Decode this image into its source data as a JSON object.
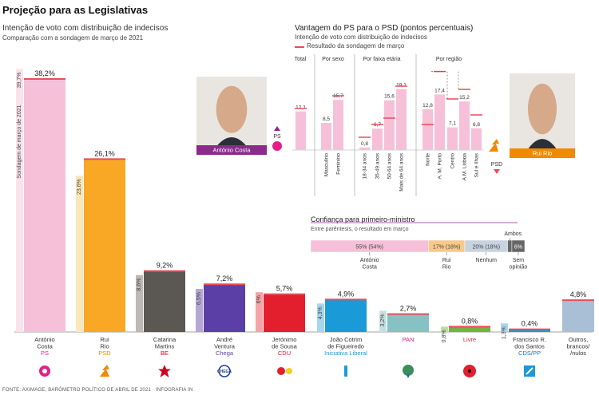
{
  "header": {
    "title": "Projeção para as Legislativas",
    "subtitle": "Intenção de voto com distribuição de indecisos",
    "comparison": "Comparação com a sondagem de março de 2021",
    "source": "FONTE: AXIMAGE, BARÓMETRO POLÍTICO DE ABRIL DE 2021 · INFOGRAFIA IN"
  },
  "chart_data": [
    {
      "type": "bar",
      "title": "Projeção para as Legislativas",
      "rotated_label": "Sondagem de março de 2021",
      "categories": [
        {
          "name": "António Costa",
          "party": "PS",
          "color": "#f6c0d8",
          "party_color": "#e2208a",
          "icon": "ps-fist-rose-icon"
        },
        {
          "name": "Rui Rio",
          "party": "PSD",
          "color": "#f9a825",
          "party_color": "#f08a00",
          "icon": "psd-arrow-icon"
        },
        {
          "name": "Catarina Martins",
          "party": "BE",
          "color": "#5b5753",
          "party_color": "#d2001e",
          "icon": "be-star-icon"
        },
        {
          "name": "André Ventura",
          "party": "Chega",
          "color": "#5c3fa6",
          "party_color": "#5c3fa6",
          "icon": "chega-icon"
        },
        {
          "name": "Jerónimo de Sousa",
          "party": "CDU",
          "color": "#e31e2d",
          "party_color": "#e31e2d",
          "icon": "cdu-hammer-sickle-icon"
        },
        {
          "name": "João Cotrim de Figueiredo",
          "party": "Iniciativa Liberal",
          "color": "#1a9bd7",
          "party_color": "#1a9bd7",
          "icon": "il-icon"
        },
        {
          "name": "",
          "party": "PAN",
          "color": "#86c2c4",
          "party_color": "#e2208a",
          "icon": "pan-tree-icon"
        },
        {
          "name": "",
          "party": "Livre",
          "color": "#73b43c",
          "party_color": "#e31e2d",
          "icon": "livre-poppy-icon"
        },
        {
          "name": "Francisco R. dos Santos",
          "party": "CDS/PP",
          "color": "#1a9bd7",
          "party_color": "#1a6fb7",
          "icon": "cds-icon"
        },
        {
          "name": "Outros, brancos/ /nulos",
          "party": "",
          "color": "#a8bfd6",
          "party_color": "#333333",
          "icon": ""
        }
      ],
      "series": [
        {
          "name": "Abril 2021",
          "values": [
            38.2,
            26.1,
            9.2,
            7.2,
            5.7,
            4.9,
            2.7,
            0.8,
            0.4,
            4.8
          ],
          "labels": [
            "38,2%",
            "26,1%",
            "9,2%",
            "7,2%",
            "5,7%",
            "4,9%",
            "2,7%",
            "0,8%",
            "0,4%",
            "4,8%"
          ]
        },
        {
          "name": "Sondagem de março de 2021",
          "values": [
            39.7,
            23.6,
            8.6,
            6.5,
            6.0,
            4.3,
            3.2,
            0.8,
            1.3,
            null
          ],
          "labels": [
            "39,7%",
            "23,6%",
            "8,6%",
            "6,5%",
            "6%",
            "4,3%",
            "3,2%",
            "0,8%",
            "1,3%",
            ""
          ]
        }
      ],
      "ylim": [
        0,
        40
      ]
    },
    {
      "type": "bar",
      "title": "Vantagem do PS para o PSD (pontos percentuais)",
      "subtitle": "Intenção de voto com distribuição de indecisos",
      "legend": "Resultado da sondagem de março",
      "groups": [
        {
          "name": "Total",
          "categories": [
            ""
          ],
          "values": [
            12.1
          ],
          "march": [
            13.0
          ]
        },
        {
          "name": "Por sexo",
          "categories": [
            "Masculino",
            "Feminino"
          ],
          "values": [
            8.5,
            15.7
          ],
          "march": [
            null,
            17.0
          ]
        },
        {
          "name": "Por faixa etária",
          "categories": [
            "18-34 anos",
            "35-49 anos",
            "50-64 anos",
            "Mais de 64 anos"
          ],
          "values": [
            0.8,
            6.7,
            15.6,
            19.1
          ],
          "march": [
            4.0,
            8.0,
            10.0,
            20.0
          ]
        },
        {
          "name": "Por região",
          "categories": [
            "Norte",
            "A. M. Porto",
            "Centro",
            "A.M. Lisboa",
            "Sul e Ilhas"
          ],
          "values": [
            12.8,
            17.4,
            7.1,
            15.2,
            6.8
          ],
          "march": [
            8.0,
            24.6,
            16.0,
            19.0,
            11.0
          ]
        }
      ],
      "value_labels": [
        "12,1",
        "8,5",
        "15,7",
        "0,8",
        "6,7",
        "15,6",
        "19,1",
        "12,8",
        "17,4",
        "7,1",
        "15,2",
        "6,8"
      ],
      "annotations": {
        "ps_label": "PS",
        "psd_label": "PSD",
        "costa_caption": "António Costa",
        "rio_caption": "Rui Rio"
      }
    },
    {
      "type": "bar",
      "title": "Confiança para primeiro-ministro",
      "subtitle": "Entre parêntesis, o resultado em março",
      "categories": [
        "António Costa",
        "Rui Rio",
        "Nenhum",
        "Ambos",
        "Sem opinião"
      ],
      "values": [
        55,
        17,
        20,
        2,
        6
      ],
      "labels": [
        "55% (54%)",
        "17% (18%)",
        "20% (18%)",
        "",
        "6%"
      ],
      "colors": [
        "#f6c0d8",
        "#f9c98a",
        "#c9d3df",
        "#666666",
        "#666666"
      ]
    }
  ]
}
